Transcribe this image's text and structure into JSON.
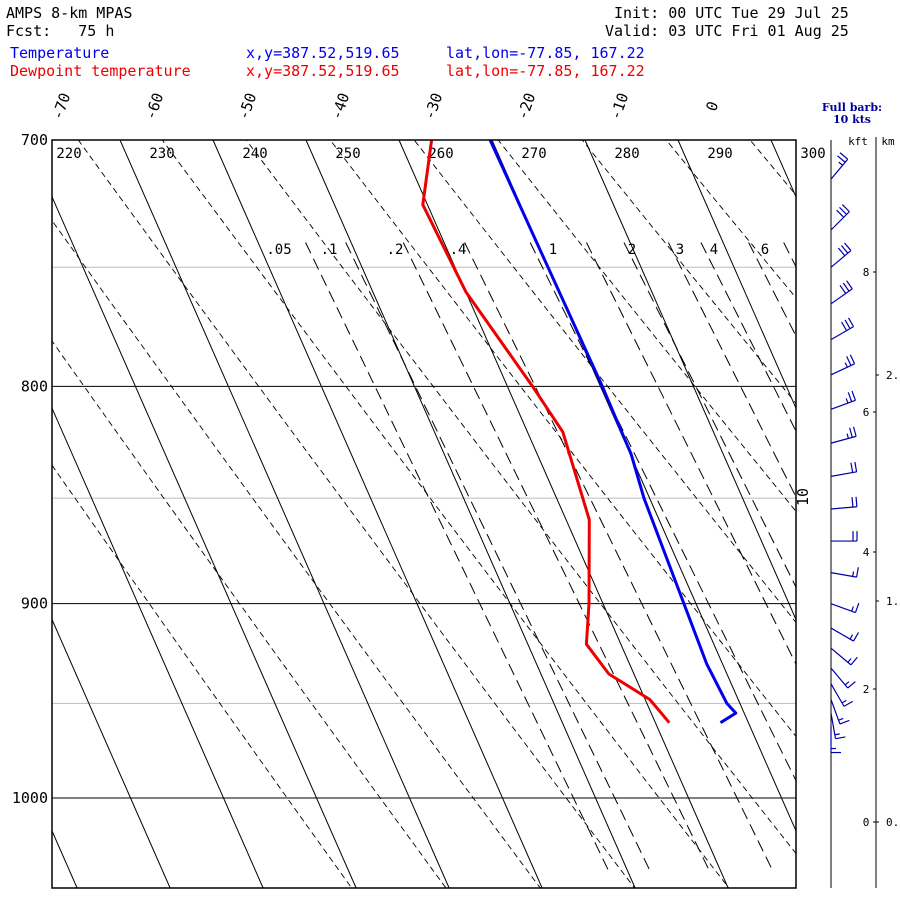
{
  "header": {
    "model": "AMPS 8-km MPAS",
    "fcst_label": "Fcst:",
    "fcst_value": "75 h",
    "init_label": "Init:",
    "init_value": "00 UTC Tue 29 Jul 25",
    "valid_label": "Valid:",
    "valid_value": "03 UTC Fri 01 Aug 25"
  },
  "series_info": [
    {
      "name": "Temperature",
      "xy": "x,y=387.52,519.65",
      "latlon": "lat,lon=-77.85, 167.22",
      "color": "#0000ee"
    },
    {
      "name": "Dewpoint temperature",
      "xy": "x,y=387.52,519.65",
      "latlon": "lat,lon=-77.85, 167.22",
      "color": "#ee0000"
    }
  ],
  "barb_note": {
    "line1": "Full barb:",
    "line2": "10 kts"
  },
  "height_axis": {
    "left_label": "kft",
    "right_label": "km"
  },
  "chart_data": {
    "type": "line",
    "title": "",
    "y_axis": {
      "label": "",
      "scale": "log",
      "range": [
        1040,
        700
      ],
      "ticks": [
        700,
        800,
        900,
        1000
      ]
    },
    "isotherms_c": [
      -70,
      -60,
      -50,
      -40,
      -30,
      -20,
      -10,
      0
    ],
    "extra_isotherm_label": "10",
    "dry_adiabats_k": [
      220,
      230,
      240,
      250,
      260,
      270,
      280,
      290,
      300
    ],
    "mixing_ratio_labels": [
      ".05",
      ".1",
      ".2",
      ".4",
      "1",
      "2",
      "3",
      "4",
      "6"
    ],
    "series": [
      {
        "name": "Temperature",
        "color": "#0000ee",
        "points": [
          [
            700,
            -30.2
          ],
          [
            750,
            -30.0
          ],
          [
            800,
            -29.8
          ],
          [
            830,
            -29.9
          ],
          [
            850,
            -30.6
          ],
          [
            900,
            -31.3
          ],
          [
            930,
            -31.7
          ],
          [
            950,
            -31.4
          ],
          [
            955,
            -30.9
          ],
          [
            960,
            -33.0
          ]
        ]
      },
      {
        "name": "Dewpoint temperature",
        "color": "#ee0000",
        "points": [
          [
            700,
            -36.5
          ],
          [
            725,
            -40.5
          ],
          [
            760,
            -40.0
          ],
          [
            800,
            -37.3
          ],
          [
            820,
            -36.2
          ],
          [
            860,
            -37.5
          ],
          [
            900,
            -41.5
          ],
          [
            920,
            -43.7
          ],
          [
            935,
            -42.7
          ],
          [
            948,
            -39.5
          ],
          [
            960,
            -38.5
          ]
        ]
      }
    ],
    "height_ticks_kft": [
      "8",
      "6",
      "4",
      "2",
      "0"
    ],
    "height_ticks_km": [
      "2.",
      "1.",
      "0."
    ],
    "wind_barbs": [
      {
        "p": 715,
        "dir": 40,
        "speed": 25
      },
      {
        "p": 735,
        "dir": 45,
        "speed": 30
      },
      {
        "p": 750,
        "dir": 50,
        "speed": 30
      },
      {
        "p": 765,
        "dir": 55,
        "speed": 30
      },
      {
        "p": 780,
        "dir": 60,
        "speed": 30
      },
      {
        "p": 795,
        "dir": 65,
        "speed": 25
      },
      {
        "p": 810,
        "dir": 70,
        "speed": 25
      },
      {
        "p": 825,
        "dir": 75,
        "speed": 25
      },
      {
        "p": 840,
        "dir": 80,
        "speed": 20
      },
      {
        "p": 855,
        "dir": 85,
        "speed": 20
      },
      {
        "p": 870,
        "dir": 90,
        "speed": 20
      },
      {
        "p": 885,
        "dir": 100,
        "speed": 15
      },
      {
        "p": 900,
        "dir": 110,
        "speed": 15
      },
      {
        "p": 912,
        "dir": 120,
        "speed": 15
      },
      {
        "p": 922,
        "dir": 130,
        "speed": 15
      },
      {
        "p": 932,
        "dir": 140,
        "speed": 15
      },
      {
        "p": 940,
        "dir": 150,
        "speed": 15
      },
      {
        "p": 948,
        "dir": 160,
        "speed": 15
      },
      {
        "p": 955,
        "dir": 170,
        "speed": 15
      },
      {
        "p": 962,
        "dir": 180,
        "speed": 15
      }
    ]
  }
}
